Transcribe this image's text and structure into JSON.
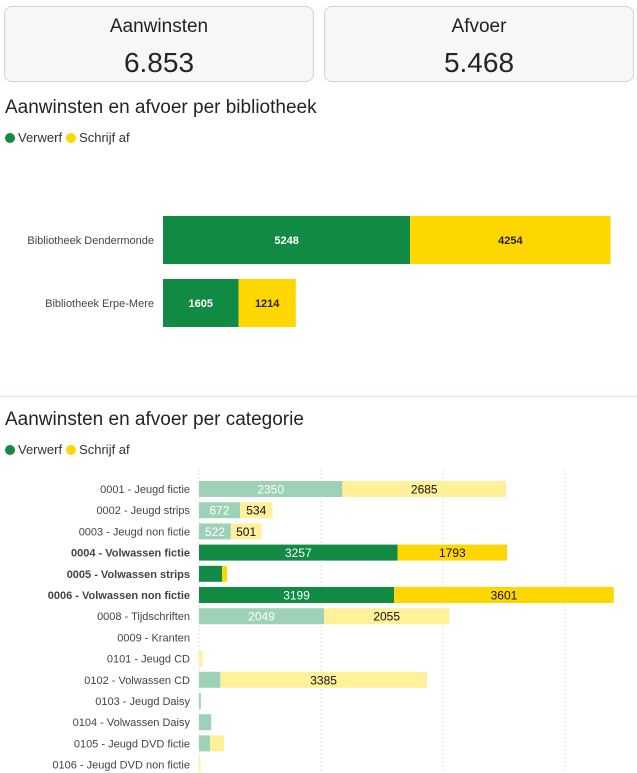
{
  "kpis": [
    {
      "label": "Aanwinsten",
      "value": "6.853"
    },
    {
      "label": "Afvoer",
      "value": "5.468"
    }
  ],
  "chart1": {
    "title": "Aanwinsten en afvoer per bibliotheek",
    "legend": [
      {
        "label": "Verwerf",
        "color": "#118a43"
      },
      {
        "label": "Schrijf af",
        "color": "#ffd700"
      }
    ]
  },
  "chart2": {
    "title": "Aanwinsten en afvoer per categorie",
    "legend": [
      {
        "label": "Verwerf",
        "color": "#118a43"
      },
      {
        "label": "Schrijf af",
        "color": "#ffd700"
      }
    ]
  },
  "colors": {
    "verwerf": "#118a43",
    "schrijf": "#ffd700",
    "verwerf_faded": "#9dd2b6",
    "schrijf_faded": "#fff09a"
  },
  "chart_data": [
    {
      "type": "bar",
      "orientation": "horizontal",
      "stacked": true,
      "title": "Aanwinsten en afvoer per bibliotheek",
      "categories": [
        "Bibliotheek Dendermonde",
        "Bibliotheek Erpe-Mere"
      ],
      "series": [
        {
          "name": "Verwerf",
          "values": [
            5248,
            1605
          ]
        },
        {
          "name": "Schrijf af",
          "values": [
            4254,
            1214
          ]
        }
      ],
      "legend": "top-left"
    },
    {
      "type": "bar",
      "orientation": "horizontal",
      "stacked": true,
      "title": "Aanwinsten en afvoer per categorie",
      "categories": [
        "0001 - Jeugd fictie",
        "0002 - Jeugd strips",
        "0003 - Jeugd non fictie",
        "0004 - Volwassen fictie",
        "0005 - Volwassen strips",
        "0006 - Volwassen non fictie",
        "0008 - Tijdschriften",
        "0009 - Kranten",
        "0101 - Jeugd CD",
        "0102 - Volwassen CD",
        "0103 - Jeugd Daisy",
        "0104 - Volwassen Daisy",
        "0105 - Jeugd DVD fictie",
        "0106 - Jeugd DVD non fictie"
      ],
      "bold": [
        false,
        false,
        false,
        true,
        true,
        true,
        false,
        false,
        false,
        false,
        false,
        false,
        false,
        false
      ],
      "series": [
        {
          "name": "Verwerf",
          "values": [
            2350,
            672,
            522,
            3257,
            380,
            3199,
            2049,
            0,
            0,
            350,
            30,
            200,
            180,
            0
          ],
          "labels": [
            "2350",
            "672",
            "522",
            "3257",
            "",
            "3199",
            "2049",
            "",
            "",
            "",
            "",
            "",
            "",
            ""
          ]
        },
        {
          "name": "Schrijf af",
          "values": [
            2685,
            534,
            501,
            1793,
            80,
            3601,
            2055,
            0,
            60,
            3385,
            0,
            0,
            230,
            20
          ],
          "labels": [
            "2685",
            "534",
            "501",
            "1793",
            "",
            "3601",
            "2055",
            "",
            "",
            "3385",
            "",
            "",
            "",
            ""
          ]
        }
      ],
      "grid": true,
      "legend": "top-left"
    }
  ]
}
